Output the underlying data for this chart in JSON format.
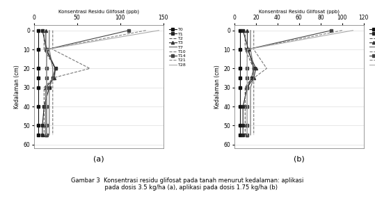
{
  "title": "Konsentrasi Residu Glifosat (ppb)",
  "ylabel": "Kedalaman (cm)",
  "caption": "Gambar 3  Konsentrasi residu glifosat pada tanah menurut kedalaman: aplikasi\n    pada dosis 3.5 kg/ha (a), aplikasi pada dosis 1.75 kg/ha (b)",
  "depths": [
    0,
    10,
    20,
    25,
    30,
    40,
    50,
    55
  ],
  "chart_a": {
    "xticks": [
      0,
      50,
      100,
      150
    ],
    "xlim": [
      0,
      150
    ],
    "label": "(a)",
    "series": {
      "T0": [
        5,
        5,
        5,
        5,
        5,
        5,
        5,
        5
      ],
      "T1": [
        10,
        15,
        25,
        22,
        18,
        12,
        10,
        10
      ],
      "T2": [
        12,
        12,
        25,
        23,
        12,
        12,
        12,
        12
      ],
      "T3": [
        14,
        14,
        25,
        24,
        14,
        14,
        14,
        14
      ],
      "T7": [
        18,
        18,
        22,
        22,
        18,
        18,
        18,
        18
      ],
      "T10": [
        22,
        22,
        65,
        22,
        22,
        22,
        22,
        22
      ],
      "T14": [
        110,
        15,
        15,
        15,
        15,
        15,
        15,
        15
      ],
      "T21": [
        130,
        15,
        15,
        15,
        15,
        15,
        15,
        15
      ],
      "T28": [
        145,
        15,
        15,
        15,
        15,
        15,
        15,
        15
      ]
    }
  },
  "chart_b": {
    "xticks": [
      0,
      20,
      40,
      60,
      80,
      100,
      120
    ],
    "xlim": [
      0,
      120
    ],
    "label": "(b)",
    "series": {
      "T0": [
        5,
        5,
        5,
        5,
        5,
        5,
        5,
        5
      ],
      "T1": [
        8,
        13,
        18,
        16,
        12,
        8,
        8,
        8
      ],
      "T2": [
        10,
        10,
        18,
        16,
        10,
        10,
        10,
        10
      ],
      "T3": [
        12,
        12,
        20,
        18,
        12,
        12,
        12,
        12
      ],
      "T7": [
        15,
        15,
        18,
        18,
        15,
        15,
        15,
        15
      ],
      "T10": [
        18,
        18,
        30,
        18,
        18,
        18,
        18,
        18
      ],
      "T14": [
        90,
        12,
        12,
        12,
        12,
        12,
        12,
        12
      ],
      "T21": [
        100,
        12,
        12,
        12,
        12,
        12,
        12,
        12
      ],
      "T28": [
        110,
        12,
        12,
        12,
        12,
        12,
        12,
        12
      ]
    }
  },
  "series_order": [
    "T0",
    "T1",
    "T2",
    "T3",
    "T7",
    "T10",
    "T14",
    "T21",
    "T28"
  ],
  "styles": {
    "T0": {
      "color": "#111111",
      "marker": "s",
      "ls": "-",
      "lw": 0.8,
      "ms": 3
    },
    "T1": {
      "color": "#222222",
      "marker": "s",
      "ls": "-",
      "lw": 0.8,
      "ms": 3
    },
    "T2": {
      "color": "#555555",
      "marker": "",
      "ls": "--",
      "lw": 0.8,
      "ms": 3
    },
    "T3": {
      "color": "#333333",
      "marker": "^",
      "ls": "-",
      "lw": 0.8,
      "ms": 3
    },
    "T7": {
      "color": "#666666",
      "marker": "",
      "ls": "-",
      "lw": 0.8,
      "ms": 3
    },
    "T10": {
      "color": "#777777",
      "marker": "",
      "ls": "--",
      "lw": 0.8,
      "ms": 3
    },
    "T14": {
      "color": "#444444",
      "marker": "s",
      "ls": "-",
      "lw": 0.8,
      "ms": 3
    },
    "T21": {
      "color": "#888888",
      "marker": "",
      "ls": "--",
      "lw": 0.8,
      "ms": 3
    },
    "T28": {
      "color": "#aaaaaa",
      "marker": "",
      "ls": "-",
      "lw": 0.8,
      "ms": 3
    }
  },
  "yticks": [
    0,
    10,
    20,
    30,
    40,
    50,
    60
  ],
  "ylim": [
    62,
    -3
  ]
}
